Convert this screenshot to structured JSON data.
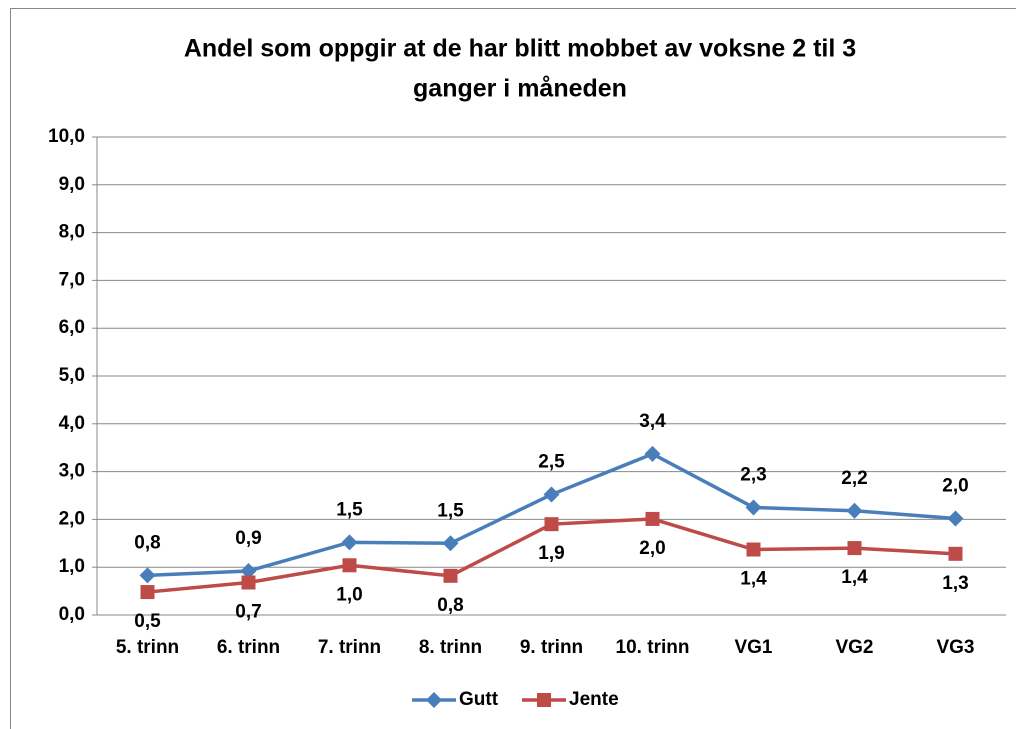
{
  "chart_data": {
    "type": "line",
    "title": [
      "Andel som oppgir at de har blitt mobbet av voksne 2 til 3",
      "ganger i måneden"
    ],
    "categories": [
      "5. trinn",
      "6. trinn",
      "7. trinn",
      "8. trinn",
      "9. trinn",
      "10. trinn",
      "VG1",
      "VG2",
      "VG3"
    ],
    "series": [
      {
        "name": "Gutt",
        "color": "#4a7ebb",
        "marker": "diamond",
        "values": [
          0.83,
          0.92,
          1.52,
          1.5,
          2.52,
          3.37,
          2.25,
          2.18,
          2.02
        ],
        "value_labels": [
          "0,8",
          "0,9",
          "1,5",
          "1,5",
          "2,5",
          "3,4",
          "2,3",
          "2,2",
          "2,0"
        ]
      },
      {
        "name": "Jente",
        "color": "#be4b48",
        "marker": "square",
        "values": [
          0.48,
          0.68,
          1.04,
          0.82,
          1.9,
          2.01,
          1.37,
          1.4,
          1.28
        ],
        "value_labels": [
          "0,5",
          "0,7",
          "1,0",
          "0,8",
          "1,9",
          "2,0",
          "1,4",
          "1,4",
          "1,3"
        ]
      }
    ],
    "ylim": [
      0,
      10
    ],
    "yticks": [
      {
        "value": 0,
        "label": "0,0"
      },
      {
        "value": 1,
        "label": "1,0"
      },
      {
        "value": 2,
        "label": "2,0"
      },
      {
        "value": 3,
        "label": "3,0"
      },
      {
        "value": 4,
        "label": "4,0"
      },
      {
        "value": 5,
        "label": "5,0"
      },
      {
        "value": 6,
        "label": "6,0"
      },
      {
        "value": 7,
        "label": "7,0"
      },
      {
        "value": 8,
        "label": "8,0"
      },
      {
        "value": 9,
        "label": "9,0"
      },
      {
        "value": 10,
        "label": "10,0"
      }
    ],
    "grid": true,
    "legend": "bottom"
  }
}
